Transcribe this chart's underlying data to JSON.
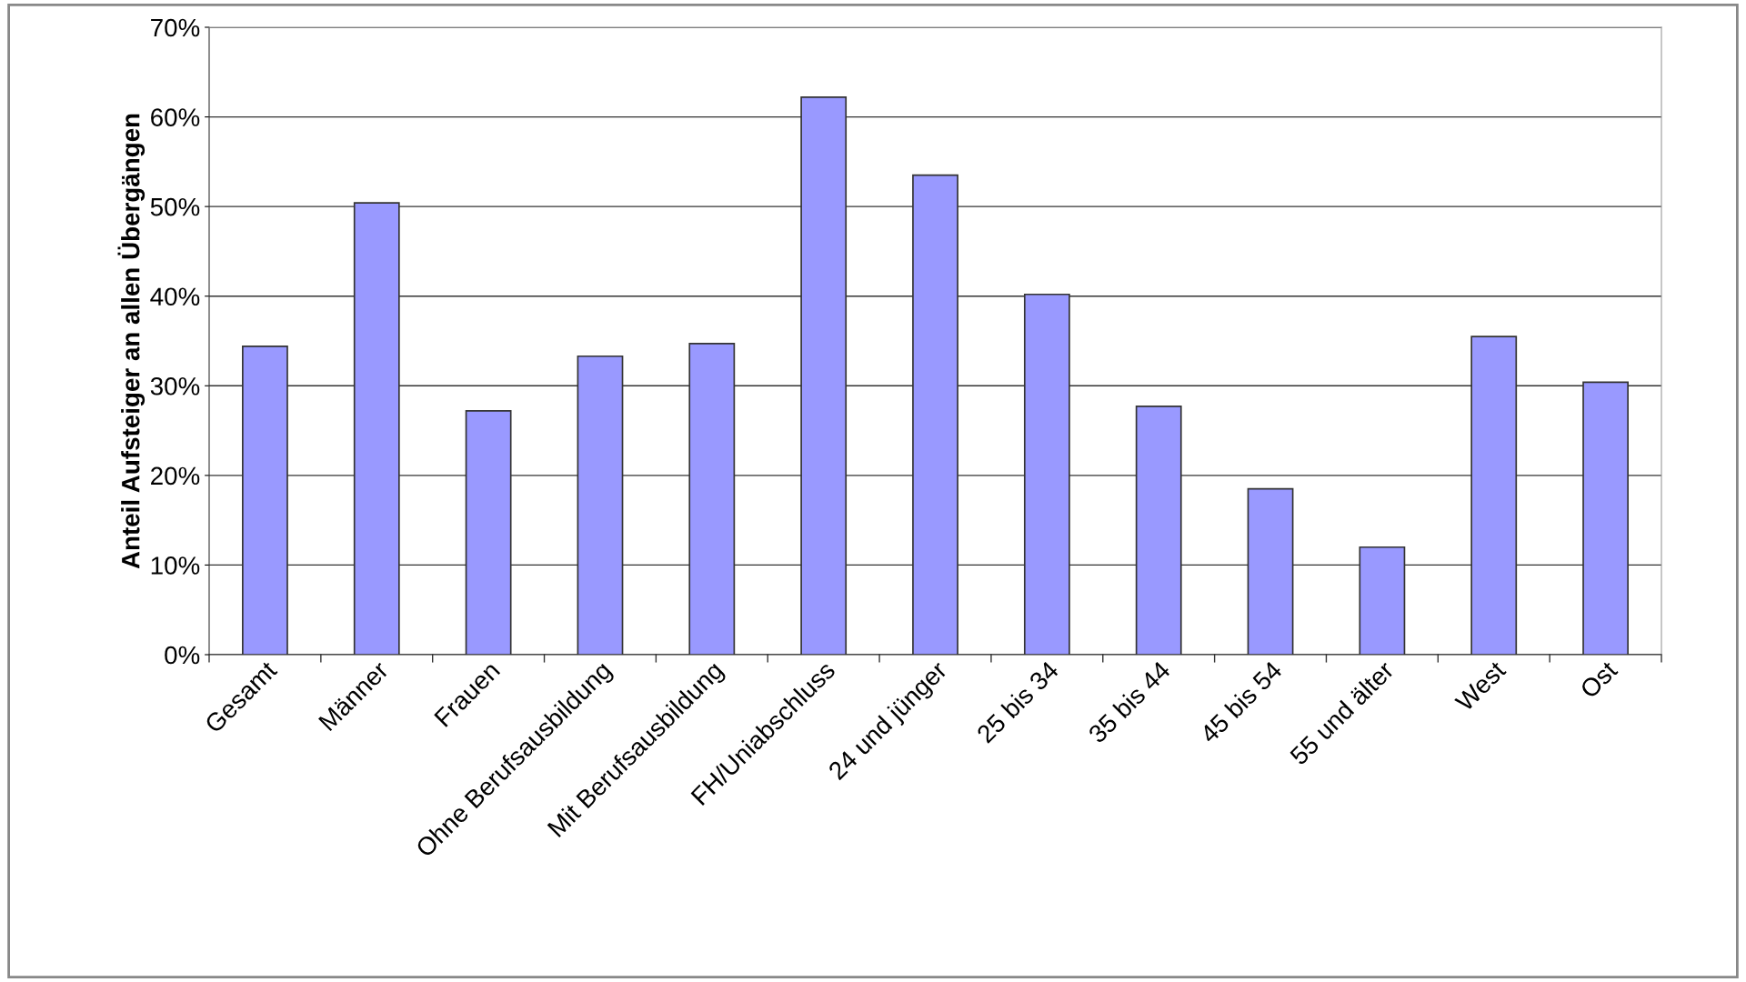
{
  "chart_data": {
    "type": "bar",
    "ylabel": "Anteil Aufsteiger an allen Übergängen",
    "categories": [
      "Gesamt",
      "Männer",
      "Frauen",
      "Ohne Berufsausbildung",
      "Mit Berufsausbildung",
      "FH/Uniabschluss",
      "24 und jünger",
      "25 bis 34",
      "35 bis 44",
      "45 bis 54",
      "55 und älter",
      "West",
      "Ost"
    ],
    "values": [
      34.4,
      50.4,
      27.2,
      33.3,
      34.7,
      62.2,
      53.5,
      40.2,
      27.7,
      18.5,
      12.0,
      35.5,
      30.4
    ],
    "color": "#9999ff",
    "ylim": [
      0,
      70
    ],
    "yticks": [
      {
        "value": 0,
        "label": "0%"
      },
      {
        "value": 10,
        "label": "10%"
      },
      {
        "value": 20,
        "label": "20%"
      },
      {
        "value": 30,
        "label": "30%"
      },
      {
        "value": 40,
        "label": "40%"
      },
      {
        "value": 50,
        "label": "50%"
      },
      {
        "value": 60,
        "label": "60%"
      },
      {
        "value": 70,
        "label": "70%"
      }
    ],
    "grid": "y"
  }
}
